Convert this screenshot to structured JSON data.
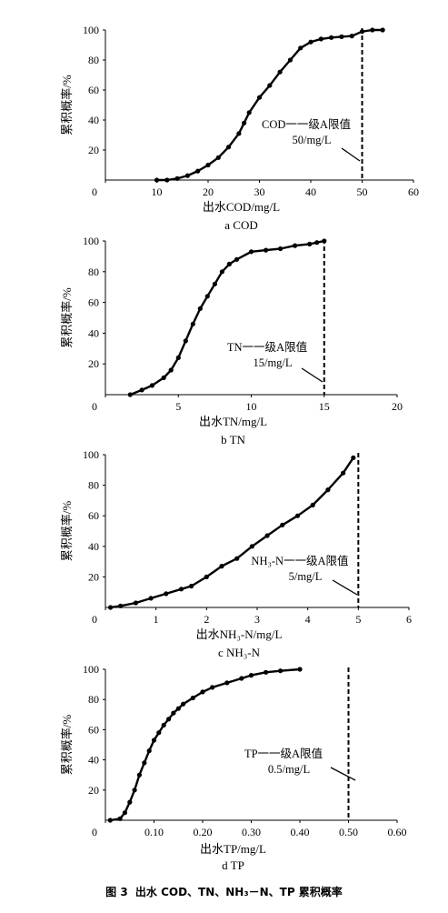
{
  "chart_data": [
    {
      "type": "line",
      "xlabel": "出水COD/mg/L",
      "ylabel": "累积概率/%",
      "sublabel": "a  COD",
      "xlim": [
        0,
        60
      ],
      "ylim": [
        0,
        100
      ],
      "xticks": [
        "0",
        "10",
        "20",
        "30",
        "40",
        "50",
        "60"
      ],
      "yticks": [
        "20",
        "40",
        "60",
        "80",
        "100"
      ],
      "limit_value": 50,
      "annotation": [
        "COD一一级A限值",
        "50/mg/L"
      ],
      "series": [
        {
          "x": [
            10,
            12,
            14,
            16,
            18,
            20,
            22,
            24,
            26,
            27,
            28,
            30,
            32,
            34,
            36,
            38,
            40,
            42,
            44,
            46,
            48,
            50,
            52,
            54
          ],
          "y": [
            0,
            0,
            1,
            3,
            6,
            10,
            15,
            22,
            31,
            38,
            45,
            55,
            63,
            72,
            80,
            88,
            92,
            94,
            95,
            95.5,
            96,
            99,
            100,
            100
          ]
        }
      ]
    },
    {
      "type": "line",
      "xlabel": "出水TN/mg/L",
      "ylabel": "累积概率/%",
      "sublabel": "b  TN",
      "xlim": [
        0,
        20
      ],
      "ylim": [
        0,
        100
      ],
      "xticks": [
        "0",
        "5",
        "10",
        "15",
        "20"
      ],
      "yticks": [
        "20",
        "40",
        "60",
        "80",
        "100"
      ],
      "limit_value": 15,
      "annotation": [
        "TN一一级A限值",
        "15/mg/L"
      ],
      "series": [
        {
          "x": [
            1.7,
            2.5,
            3.2,
            4,
            4.5,
            5,
            5.5,
            6,
            6.5,
            7,
            7.5,
            8,
            8.5,
            9,
            10,
            11,
            12,
            13,
            14,
            14.5,
            15
          ],
          "y": [
            0,
            3,
            6,
            11,
            16,
            24,
            35,
            46,
            56,
            64,
            72,
            80,
            85,
            88,
            93,
            94,
            95,
            97,
            98,
            99,
            100
          ]
        }
      ]
    },
    {
      "type": "line",
      "xlabel": "出水NH₃-N/mg/L",
      "ylabel": "累积概率/%",
      "sublabel": "c  NH₃-N",
      "xlim": [
        0,
        6
      ],
      "ylim": [
        0,
        100
      ],
      "xticks": [
        "0",
        "1",
        "2",
        "3",
        "4",
        "5",
        "6"
      ],
      "yticks": [
        "20",
        "40",
        "60",
        "80",
        "100"
      ],
      "limit_value": 5,
      "annotation": [
        "NH₃-N一一级A限值",
        "5/mg/L"
      ],
      "series": [
        {
          "x": [
            0.1,
            0.3,
            0.6,
            0.9,
            1.2,
            1.5,
            1.7,
            2,
            2.3,
            2.6,
            2.9,
            3.2,
            3.5,
            3.8,
            4.1,
            4.4,
            4.7,
            4.9
          ],
          "y": [
            0,
            1,
            3,
            6,
            9,
            12,
            14,
            20,
            27,
            32,
            40,
            47,
            54,
            60,
            67,
            77,
            88,
            98
          ]
        }
      ]
    },
    {
      "type": "line",
      "xlabel": "出水TP/mg/L",
      "ylabel": "累积概率/%",
      "sublabel": "d  TP",
      "xlim": [
        0,
        0.6
      ],
      "ylim": [
        0,
        100
      ],
      "xticks": [
        "0",
        "0.10",
        "0.20",
        "0.30",
        "0.40",
        "0.50",
        "0.60"
      ],
      "yticks": [
        "20",
        "40",
        "60",
        "80",
        "100"
      ],
      "limit_value": 0.5,
      "annotation": [
        "TP一一级A限值",
        "0.5/mg/L"
      ],
      "series": [
        {
          "x": [
            0.01,
            0.03,
            0.04,
            0.05,
            0.06,
            0.07,
            0.08,
            0.09,
            0.1,
            0.11,
            0.12,
            0.13,
            0.14,
            0.15,
            0.16,
            0.18,
            0.2,
            0.22,
            0.25,
            0.28,
            0.3,
            0.33,
            0.36,
            0.4
          ],
          "y": [
            0,
            1,
            5,
            12,
            20,
            30,
            38,
            46,
            53,
            58,
            63,
            67,
            71,
            74,
            77,
            81,
            85,
            88,
            91,
            94,
            96,
            98,
            99,
            100
          ]
        }
      ]
    }
  ],
  "caption": {
    "figure_no": "图 3",
    "text": "出水 COD、TN、NH₃－N、TP 累积概率"
  }
}
